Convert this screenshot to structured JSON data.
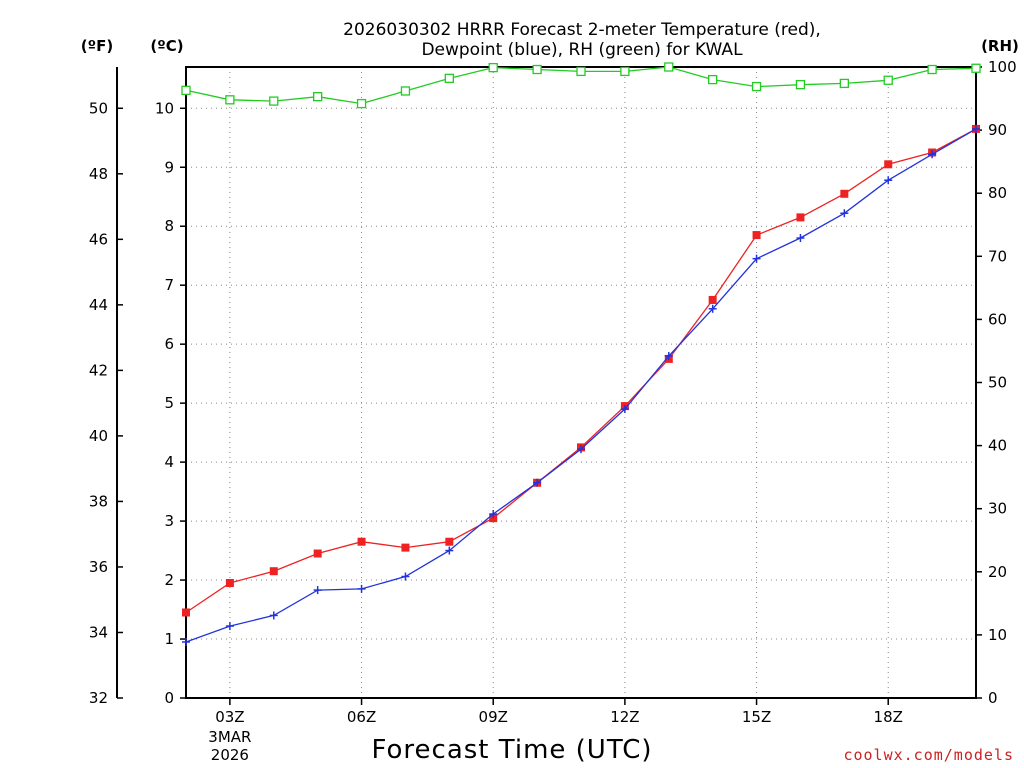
{
  "chart_data": {
    "type": "line",
    "title": [
      "2026030302 HRRR Forecast 2-meter Temperature (red),",
      "Dewpoint (blue), RH (green) for KWAL"
    ],
    "xlabel": "Forecast Time (UTC)",
    "units": {
      "left_f": "(ºF)",
      "left_c": "(ºC)",
      "right_rh": "(RH)"
    },
    "x": [
      2,
      3,
      4,
      5,
      6,
      7,
      8,
      9,
      10,
      11,
      12,
      13,
      14,
      15,
      16,
      17,
      18,
      19,
      20
    ],
    "xlim": [
      2,
      20
    ],
    "x_ticks": [
      {
        "x": 3,
        "label": "03Z",
        "sub": [
          "3MAR",
          "2026"
        ]
      },
      {
        "x": 6,
        "label": "06Z"
      },
      {
        "x": 9,
        "label": "09Z"
      },
      {
        "x": 12,
        "label": "12Z"
      },
      {
        "x": 15,
        "label": "15Z"
      },
      {
        "x": 18,
        "label": "18Z"
      }
    ],
    "ylim_c": [
      0,
      10.7
    ],
    "yticks_c": [
      "0",
      "1",
      "2",
      "3",
      "4",
      "5",
      "6",
      "7",
      "8",
      "9",
      "10"
    ],
    "ylim_f": [
      32,
      51.26
    ],
    "yticks_f": [
      "32",
      "34",
      "36",
      "38",
      "40",
      "42",
      "44",
      "46",
      "48",
      "50"
    ],
    "ylim_rh": [
      0,
      100
    ],
    "yticks_rh": [
      "0",
      "10",
      "20",
      "30",
      "40",
      "50",
      "60",
      "70",
      "80",
      "90",
      "100"
    ],
    "series": [
      {
        "name": "Temperature",
        "axis": "c",
        "color": "#ee2222",
        "marker": "square",
        "values": [
          1.45,
          1.95,
          2.15,
          2.45,
          2.65,
          2.55,
          2.65,
          3.05,
          3.65,
          4.25,
          4.95,
          5.75,
          6.75,
          7.85,
          8.15,
          8.55,
          9.05,
          9.25,
          9.65
        ]
      },
      {
        "name": "Dewpoint",
        "axis": "c",
        "color": "#2233dd",
        "marker": "plus",
        "values": [
          0.95,
          1.22,
          1.4,
          1.83,
          1.85,
          2.06,
          2.5,
          3.12,
          3.65,
          4.22,
          4.9,
          5.8,
          6.6,
          7.45,
          7.8,
          8.22,
          8.78,
          9.22,
          9.65
        ]
      },
      {
        "name": "RH",
        "axis": "rh",
        "color": "#22cc22",
        "marker": "open-square",
        "values": [
          96.3,
          94.8,
          94.6,
          95.3,
          94.2,
          96.2,
          98.2,
          99.9,
          99.6,
          99.3,
          99.3,
          100,
          98,
          96.9,
          97.2,
          97.4,
          97.9,
          99.6,
          99.8
        ]
      }
    ],
    "grid": true
  },
  "credit": "coolwx.com/models",
  "colors": {
    "temperature": "#ee2222",
    "dewpoint": "#2233dd",
    "rh": "#22cc22",
    "credit": "#cc2222"
  }
}
